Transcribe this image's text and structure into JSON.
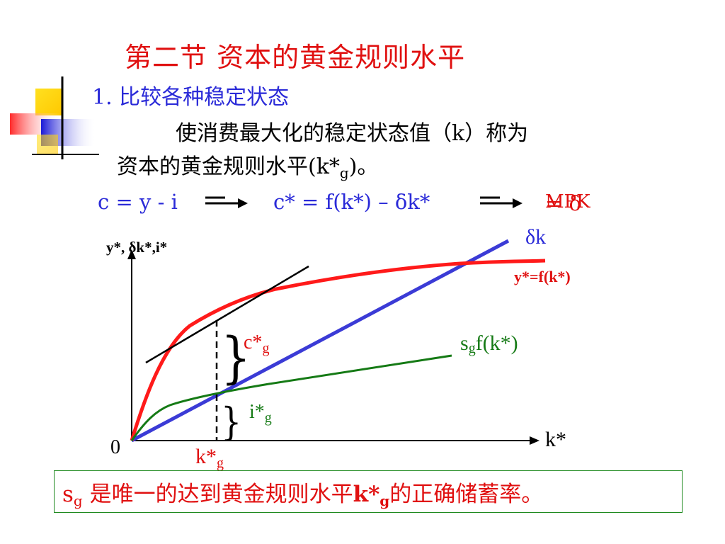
{
  "title": "第二节  资本的黄金规则水平",
  "section": "1. 比较各种稳定状态",
  "body": {
    "line1": "使消费最大化的稳定状态值（k）称为",
    "line2_prefix": "资本的黄金规则水平(k*",
    "line2_sub": "g",
    "line2_suffix": ")。"
  },
  "equations": {
    "eq1": "c = y - i",
    "eq2": "c* = f(k*) – δk*",
    "eq3_a": "MPK",
    "eq3_b": "= δ"
  },
  "diagram": {
    "y_axis_label": "y*, δk*,i*",
    "x_axis_label": "k*",
    "origin_label": "0",
    "delta_k_label": "δk",
    "production_label": "y*=f(k*)",
    "savings_label_s": "s",
    "savings_label_g": "g",
    "savings_label_f": "f(k*)",
    "consumption_label": "c*",
    "consumption_sub": "g",
    "investment_label": "i*",
    "investment_sub": "g",
    "kstar_label": "k*",
    "kstar_sub": "g",
    "colors": {
      "production": "#ff1a1a",
      "depreciation": "#3b3bd6",
      "savings": "#157a15",
      "tangent": "#000000"
    }
  },
  "footer": {
    "s": "s",
    "g": "g",
    "text1": " 是唯一的达到黄金规则水平",
    "kstar": "k*",
    "kstar_sub": "g",
    "text2": "的正确储蓄率。"
  }
}
